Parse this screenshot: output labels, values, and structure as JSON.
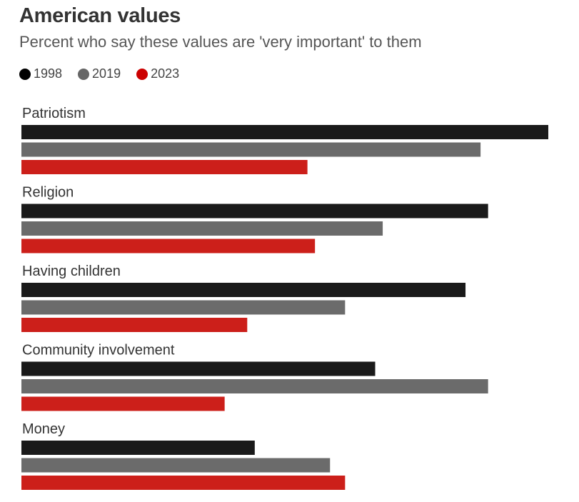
{
  "chart_data": {
    "type": "bar",
    "orientation": "horizontal",
    "title": "American values",
    "subtitle": "Percent who say these values are 'very important' to them",
    "xlabel": "",
    "ylabel": "",
    "grid": false,
    "legend_position": "top-left",
    "xlim": [
      0,
      70
    ],
    "categories": [
      "Patriotism",
      "Religion",
      "Having children",
      "Community involvement",
      "Money"
    ],
    "series": [
      {
        "name": "1998",
        "color": "#1a1a1a",
        "values": [
          70,
          62,
          59,
          47,
          31
        ]
      },
      {
        "name": "2019",
        "color": "#6b6b6b",
        "values": [
          61,
          48,
          43,
          62,
          41
        ]
      },
      {
        "name": "2023",
        "color": "#cc1f1a",
        "values": [
          38,
          39,
          30,
          27,
          43
        ]
      }
    ]
  }
}
